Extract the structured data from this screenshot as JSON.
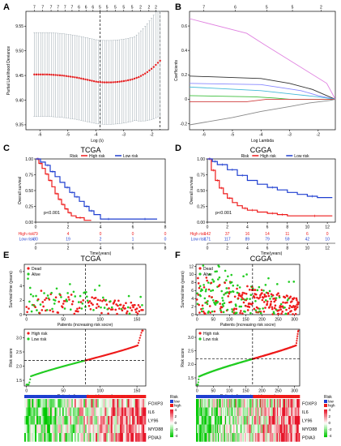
{
  "panels": {
    "A": {
      "letter": "A",
      "chart_data": {
        "type": "scatter",
        "xlabel": "Log (λ)",
        "ylabel": "Partial Likelihood Deviance",
        "xlim": [
          -6.5,
          -1.4
        ],
        "ylim": [
          9.34,
          9.58
        ],
        "xticks": [
          -6,
          -5,
          -4,
          -3,
          -2
        ],
        "yticks": [
          9.35,
          9.4,
          9.45,
          9.5,
          9.55
        ],
        "ytick_labels": [
          "9.35",
          "9.40",
          "9.45",
          "9.50",
          "9.55"
        ],
        "top_ticks": {
          "x": [
            -6.2,
            -5.9,
            -5.6,
            -5.35,
            -5.1,
            -4.85,
            -4.6,
            -4.35,
            -4.1,
            -3.85,
            -3.6,
            -3.3,
            -3.0,
            -2.7,
            -2.4,
            -2.1,
            -1.85
          ],
          "labels": [
            "7",
            "7",
            "7",
            "7",
            "7",
            "7",
            "6",
            "6",
            "6",
            "5",
            "5",
            "5",
            "5",
            "5",
            "2",
            "2",
            "2"
          ]
        },
        "vlines": [
          -3.85,
          -1.7
        ],
        "x": [
          -6.2,
          -5.95,
          -5.7,
          -5.45,
          -5.2,
          -4.95,
          -4.7,
          -4.45,
          -4.2,
          -3.95,
          -3.7,
          -3.45,
          -3.2,
          -2.95,
          -2.7,
          -2.45,
          -2.2,
          -1.95,
          -1.7
        ],
        "y": [
          9.452,
          9.452,
          9.452,
          9.451,
          9.45,
          9.448,
          9.446,
          9.443,
          9.44,
          9.437,
          9.436,
          9.436,
          9.437,
          9.439,
          9.442,
          9.447,
          9.455,
          9.466,
          9.48
        ],
        "err": [
          0.085,
          0.085,
          0.085,
          0.085,
          0.085,
          0.085,
          0.085,
          0.085,
          0.085,
          0.085,
          0.085,
          0.085,
          0.085,
          0.085,
          0.085,
          0.085,
          0.085,
          0.085,
          0.085
        ],
        "point_color": "#e31a1c",
        "bar_color": "#9aa6ad"
      }
    },
    "B": {
      "letter": "B",
      "chart_data": {
        "type": "line",
        "xlabel": "Log Lambda",
        "ylabel": "Coefficients",
        "xlim": [
          -6.5,
          -1.4
        ],
        "ylim": [
          -0.25,
          0.72
        ],
        "xticks": [
          -6,
          -5,
          -4,
          -3,
          -2
        ],
        "yticks": [
          -0.2,
          0,
          0.2,
          0.4,
          0.6
        ],
        "ytick_labels": [
          "-0.2",
          "0",
          "0.2",
          "0.4",
          "0.6"
        ],
        "top_ticks": {
          "x": [
            -6.0,
            -4.9,
            -3.8,
            -2.9,
            -1.9
          ],
          "labels": [
            "7",
            "6",
            "5",
            "5",
            "2"
          ]
        },
        "series": [
          {
            "color": "#e082e0",
            "x": [
              -6.5,
              -4.5,
              -3.9,
              -1.7,
              -1.4
            ],
            "y": [
              0.66,
              0.54,
              0.45,
              0.13,
              0.0
            ]
          },
          {
            "color": "#303030",
            "x": [
              -6.5,
              -4.0,
              -3.0,
              -2.2,
              -1.6,
              -1.4
            ],
            "y": [
              0.19,
              0.17,
              0.13,
              0.08,
              0.02,
              0.0
            ]
          },
          {
            "color": "#8888ff",
            "x": [
              -6.5,
              -4.0,
              -2.6,
              -2.0,
              -1.4
            ],
            "y": [
              0.13,
              0.12,
              0.07,
              0.03,
              0.0
            ]
          },
          {
            "color": "#44b9d8",
            "x": [
              -6.5,
              -4.0,
              -2.8,
              -2.0,
              -1.4
            ],
            "y": [
              0.1,
              0.07,
              0.04,
              0.02,
              0.0
            ]
          },
          {
            "color": "#3cbf3c",
            "x": [
              -6.5,
              -4.2,
              -3.5,
              -3.0,
              -1.4
            ],
            "y": [
              0.03,
              0.02,
              0.01,
              0.0,
              0.0
            ]
          },
          {
            "color": "#d04040",
            "x": [
              -6.5,
              -4.5,
              -3.8,
              -1.4
            ],
            "y": [
              -0.02,
              -0.02,
              0.0,
              0.0
            ]
          },
          {
            "color": "#888888",
            "x": [
              -6.5,
              -5.0,
              -4.0,
              -3.0,
              -2.3,
              -1.6,
              -1.4
            ],
            "y": [
              -0.21,
              -0.15,
              -0.1,
              -0.06,
              -0.03,
              -0.01,
              0.0
            ]
          }
        ]
      }
    },
    "C": {
      "letter": "C",
      "chart_data": {
        "type": "line",
        "title": "TCGA",
        "xlabel": "Time(years)",
        "ylabel": "Overall survival",
        "legend_title": "Risk",
        "legend": [
          "High risk",
          "Low risk"
        ],
        "pvalue": "p<0.001",
        "xlim": [
          0,
          8
        ],
        "ylim": [
          0,
          1
        ],
        "xticks": [
          0,
          2,
          4,
          6,
          8
        ],
        "yticks": [
          0,
          0.25,
          0.5,
          0.75,
          1
        ],
        "ytick_labels": [
          "0.00",
          "0.25",
          "0.50",
          "0.75",
          "1.00"
        ],
        "series": [
          {
            "name": "High risk",
            "color": "#ee1b1b",
            "x": [
              0,
              0.2,
              0.4,
              0.6,
              0.8,
              1.0,
              1.2,
              1.4,
              1.6,
              1.8,
              2.0,
              2.2,
              2.5,
              3.0,
              3.4
            ],
            "y": [
              1.0,
              0.93,
              0.85,
              0.76,
              0.66,
              0.56,
              0.45,
              0.36,
              0.28,
              0.21,
              0.15,
              0.1,
              0.07,
              0.03,
              0.02
            ]
          },
          {
            "name": "Low risk",
            "color": "#1f3fd0",
            "x": [
              0,
              0.3,
              0.6,
              0.9,
              1.2,
              1.5,
              1.8,
              2.1,
              2.4,
              2.7,
              3.0,
              3.3,
              3.6,
              4.0,
              5.0,
              6.0,
              7.5
            ],
            "y": [
              1.0,
              0.95,
              0.9,
              0.8,
              0.72,
              0.63,
              0.55,
              0.47,
              0.4,
              0.33,
              0.25,
              0.18,
              0.12,
              0.05,
              0.05,
              0.05,
              0.05
            ]
          }
        ],
        "risk_table": {
          "rows": [
            {
              "label": "High risk",
              "color": "#ee1b1b",
              "values": [
                "79",
                "4",
                "0",
                "0",
                "0"
              ]
            },
            {
              "label": "Low risk",
              "color": "#1f3fd0",
              "values": [
                "80",
                "19",
                "2",
                "1",
                "0"
              ]
            }
          ]
        }
      }
    },
    "D": {
      "letter": "D",
      "chart_data": {
        "type": "line",
        "title": "CGGA",
        "xlabel": "Time(years)",
        "ylabel": "Overall survival",
        "legend_title": "Risk",
        "legend": [
          "High risk",
          "Low risk"
        ],
        "pvalue": "p<0.001",
        "xlim": [
          0,
          12.8
        ],
        "ylim": [
          0,
          1
        ],
        "xticks": [
          0,
          2,
          4,
          6,
          8,
          10,
          12
        ],
        "yticks": [
          0,
          0.25,
          0.5,
          0.75,
          1
        ],
        "ytick_labels": [
          "0.00",
          "0.25",
          "0.50",
          "0.75",
          "1.00"
        ],
        "series": [
          {
            "name": "High risk",
            "color": "#ee1b1b",
            "x": [
              0,
              0.4,
              0.8,
              1.2,
              1.6,
              2.0,
              2.5,
              3.0,
              3.5,
              4.0,
              5.0,
              6.0,
              7.0,
              8.0,
              9.0,
              12.5
            ],
            "y": [
              1.0,
              0.82,
              0.66,
              0.54,
              0.45,
              0.38,
              0.31,
              0.26,
              0.22,
              0.19,
              0.16,
              0.14,
              0.12,
              0.1,
              0.1,
              0.1
            ]
          },
          {
            "name": "Low risk",
            "color": "#1f3fd0",
            "x": [
              0,
              0.5,
              1.0,
              2.0,
              3.0,
              4.0,
              5.0,
              6.0,
              7.0,
              8.0,
              9.0,
              10.0,
              11.0,
              12.5
            ],
            "y": [
              1.0,
              0.96,
              0.91,
              0.83,
              0.74,
              0.66,
              0.6,
              0.55,
              0.51,
              0.47,
              0.44,
              0.41,
              0.39,
              0.39
            ]
          }
        ],
        "risk_table": {
          "rows": [
            {
              "label": "High risk",
              "color": "#ee1b1b",
              "values": [
                "142",
                "37",
                "16",
                "14",
                "11",
                "6",
                "0"
              ]
            },
            {
              "label": "Low risk",
              "color": "#1f3fd0",
              "values": [
                "171",
                "117",
                "89",
                "79",
                "59",
                "42",
                "10"
              ]
            }
          ]
        }
      }
    },
    "E": {
      "letter": "E",
      "title": "TCGA",
      "scatter": {
        "ylabel": "Survival time (years)",
        "xlabel": "Patients (increasing risk socre)",
        "legend": [
          {
            "label": "Dead",
            "color": "#ee1b1b"
          },
          {
            "label": "Alive",
            "color": "#22cc22"
          }
        ],
        "n": 159,
        "ylim": [
          0,
          7
        ],
        "yticks": [
          0,
          2,
          4,
          6
        ],
        "xticks": [
          0,
          50,
          100,
          150
        ],
        "cutoff": 80,
        "ymax_typical": 3.5,
        "seed": 11
      },
      "riskscore": {
        "ylabel": "Risk score",
        "xlabel": "Patients (increasing risk socre)",
        "legend": [
          {
            "label": "High risk",
            "color": "#ee1b1b"
          },
          {
            "label": "Low risk",
            "color": "#22cc22"
          }
        ],
        "n": 159,
        "ylim": [
          1.3,
          3.3
        ],
        "yticks": [
          1.5,
          2.0,
          2.5,
          3.0
        ],
        "ytick_labels": [
          "1.5",
          "2.0",
          "2.5",
          "3.0"
        ],
        "xticks": [
          0,
          50,
          100,
          150
        ],
        "cutoff": 80,
        "cut_value": 2.2
      },
      "heatmap": {
        "genes": [
          "FOXP3",
          "IL6",
          "LY96",
          "MYD88",
          "PDIA3"
        ],
        "legend_title": "Risk",
        "legend_items": [
          {
            "label": "low",
            "color": "#1f3fd0"
          },
          {
            "label": "high",
            "color": "#ee1b1b"
          }
        ],
        "scale_labels": [
          "4",
          "2",
          "0",
          "-2",
          "-4"
        ],
        "cols": 80,
        "seed": 5
      }
    },
    "F": {
      "letter": "F",
      "title": "CGGA",
      "scatter": {
        "ylabel": "Survival time (years)",
        "xlabel": "Patients (increasing risk socre)",
        "legend": [
          {
            "label": "Dead",
            "color": "#ee1b1b"
          },
          {
            "label": "Alive",
            "color": "#22cc22"
          }
        ],
        "n": 313,
        "ylim": [
          0,
          12.5
        ],
        "yticks": [
          0,
          2,
          4,
          6,
          8,
          10,
          12
        ],
        "xticks": [
          0,
          50,
          100,
          150,
          200,
          250,
          300
        ],
        "cutoff": 171,
        "ymax_typical": 10,
        "seed": 23
      },
      "riskscore": {
        "ylabel": "Risk score",
        "xlabel": "Patients (increasing risk socre)",
        "legend": [
          {
            "label": "High risk",
            "color": "#ee1b1b"
          },
          {
            "label": "Low risk",
            "color": "#22cc22"
          }
        ],
        "n": 313,
        "ylim": [
          1.2,
          3.3
        ],
        "yticks": [
          1.5,
          2.0,
          2.5,
          3.0
        ],
        "ytick_labels": [
          "1.5",
          "2.0",
          "2.5",
          "3.0"
        ],
        "xticks": [
          0,
          50,
          100,
          150,
          200,
          250,
          300
        ],
        "cutoff": 171,
        "cut_value": 2.2
      },
      "heatmap": {
        "genes": [
          "FOXP3",
          "IL6",
          "LY96",
          "MYD88",
          "PDIA3"
        ],
        "legend_title": "Risk",
        "legend_items": [
          {
            "label": "low",
            "color": "#1f3fd0"
          },
          {
            "label": "high",
            "color": "#ee1b1b"
          }
        ],
        "scale_labels": [
          "4",
          "2",
          "0",
          "-2",
          "-4"
        ],
        "cols": 100,
        "seed": 9
      }
    }
  }
}
